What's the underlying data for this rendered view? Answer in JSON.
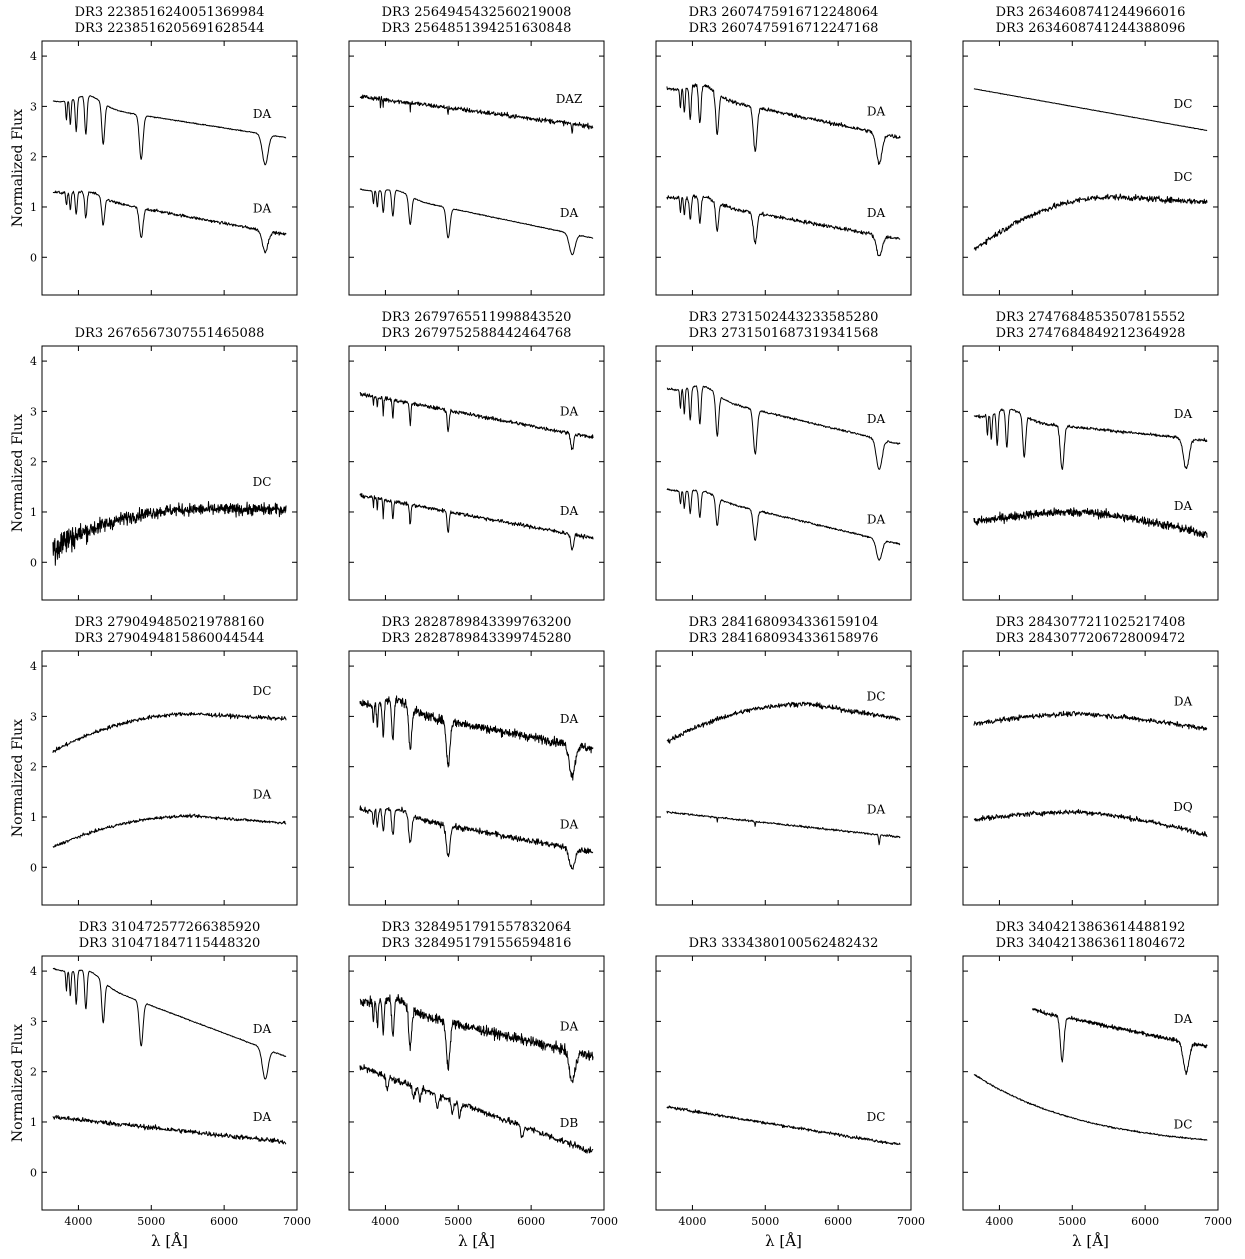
{
  "figure": {
    "ylabel": "Normalized Flux",
    "xlabel": "λ [Å]"
  },
  "chart_data": [
    {
      "type": "line",
      "title": [
        "DR3 2238516240051369984",
        "DR3 2238516205691628544"
      ],
      "xlim": [
        3500,
        7000
      ],
      "ylim": [
        -0.75,
        4.3
      ],
      "series": [
        {
          "label": "DA",
          "label_y": 2.85,
          "shape": "da",
          "start": 3.1,
          "end": 2.38,
          "noise": 0.01
        },
        {
          "label": "DA",
          "label_y": 0.97,
          "shape": "da",
          "start": 1.3,
          "end": 0.45,
          "noise": 0.03
        }
      ]
    },
    {
      "type": "line",
      "title": [
        "DR3 2564945432560219008",
        "DR3 2564851394251630848"
      ],
      "xlim": [
        3500,
        7000
      ],
      "ylim": [
        -0.75,
        4.3
      ],
      "series": [
        {
          "label": "DAZ",
          "label_y": 3.15,
          "shape": "daz",
          "start": 3.2,
          "end": 2.6,
          "noise": 0.05
        },
        {
          "label": "DA",
          "label_y": 0.88,
          "shape": "da",
          "start": 1.35,
          "end": 0.38,
          "noise": 0.01
        }
      ]
    },
    {
      "type": "line",
      "title": [
        "DR3 2607475916712248064",
        "DR3 2607475916712247168"
      ],
      "xlim": [
        3500,
        7000
      ],
      "ylim": [
        -0.75,
        4.3
      ],
      "series": [
        {
          "label": "DA",
          "label_y": 2.9,
          "shape": "da",
          "start": 3.35,
          "end": 2.38,
          "noise": 0.04
        },
        {
          "label": "DA",
          "label_y": 0.88,
          "shape": "da",
          "start": 1.2,
          "end": 0.36,
          "noise": 0.04
        }
      ]
    },
    {
      "type": "line",
      "title": [
        "DR3 2634608741244966016",
        "DR3 2634608741244388096"
      ],
      "xlim": [
        3500,
        7000
      ],
      "ylim": [
        -0.75,
        4.3
      ],
      "series": [
        {
          "label": "DC",
          "label_y": 3.05,
          "shape": "dc_lin",
          "start": 3.35,
          "end": 2.52,
          "noise": 0.005
        },
        {
          "label": "DC",
          "label_y": 1.6,
          "shape": "dc_rise",
          "start": 0.15,
          "peak": 1.2,
          "end": 1.1,
          "noise": 0.06
        }
      ]
    },
    {
      "type": "line",
      "title": [
        "DR3 2676567307551465088"
      ],
      "xlim": [
        3500,
        7000
      ],
      "ylim": [
        -0.75,
        4.3
      ],
      "series": [
        {
          "label": "DC",
          "label_y": 1.6,
          "shape": "dc_noisy",
          "start": 0.3,
          "peak": 1.05,
          "end": 1.05,
          "noise": 0.12
        }
      ]
    },
    {
      "type": "line",
      "title": [
        "DR3 2679765511998843520",
        "DR3 2679752588442464768"
      ],
      "xlim": [
        3500,
        7000
      ],
      "ylim": [
        -0.75,
        4.3
      ],
      "series": [
        {
          "label": "DA",
          "label_y": 3.0,
          "shape": "da_weak",
          "start": 3.35,
          "end": 2.48,
          "noise": 0.04
        },
        {
          "label": "DA",
          "label_y": 1.02,
          "shape": "da_weak",
          "start": 1.33,
          "end": 0.48,
          "noise": 0.04
        }
      ]
    },
    {
      "type": "line",
      "title": [
        "DR3 2731502443233585280",
        "DR3 2731501687319341568"
      ],
      "xlim": [
        3500,
        7000
      ],
      "ylim": [
        -0.75,
        4.3
      ],
      "series": [
        {
          "label": "DA",
          "label_y": 2.85,
          "shape": "da",
          "start": 3.45,
          "end": 2.35,
          "noise": 0.02
        },
        {
          "label": "DA",
          "label_y": 0.85,
          "shape": "da",
          "start": 1.45,
          "end": 0.36,
          "noise": 0.02
        }
      ]
    },
    {
      "type": "line",
      "title": [
        "DR3 2747684853507815552",
        "DR3 2747684849212364928"
      ],
      "xlim": [
        3500,
        7000
      ],
      "ylim": [
        -0.75,
        4.3
      ],
      "series": [
        {
          "label": "DA",
          "label_y": 2.95,
          "shape": "da",
          "start": 2.9,
          "end": 2.42,
          "noise": 0.03
        },
        {
          "label": "DA",
          "label_y": 1.12,
          "shape": "dc_flat",
          "start": 0.8,
          "peak": 1.0,
          "end": 0.55,
          "noise": 0.09
        }
      ]
    },
    {
      "type": "line",
      "title": [
        "DR3 2790494850219788160",
        "DR3 2790494815860044544"
      ],
      "xlim": [
        3500,
        7000
      ],
      "ylim": [
        -0.75,
        4.3
      ],
      "series": [
        {
          "label": "DC",
          "label_y": 3.5,
          "shape": "dc_rise",
          "start": 2.3,
          "peak": 3.05,
          "end": 2.95,
          "noise": 0.04
        },
        {
          "label": "DA",
          "label_y": 1.45,
          "shape": "dc_rise",
          "start": 0.4,
          "peak": 1.02,
          "end": 0.88,
          "noise": 0.03
        }
      ]
    },
    {
      "type": "line",
      "title": [
        "DR3 2828789843399763200",
        "DR3 2828789843399745280"
      ],
      "xlim": [
        3500,
        7000
      ],
      "ylim": [
        -0.75,
        4.3
      ],
      "series": [
        {
          "label": "DA",
          "label_y": 2.95,
          "shape": "da",
          "start": 3.25,
          "end": 2.35,
          "noise": 0.09
        },
        {
          "label": "DA",
          "label_y": 0.85,
          "shape": "da",
          "start": 1.15,
          "end": 0.3,
          "noise": 0.06
        }
      ]
    },
    {
      "type": "line",
      "title": [
        "DR3 2841680934336159104",
        "DR3 2841680934336158976"
      ],
      "xlim": [
        3500,
        7000
      ],
      "ylim": [
        -0.75,
        4.3
      ],
      "series": [
        {
          "label": "DC",
          "label_y": 3.4,
          "shape": "dc_rise",
          "start": 2.5,
          "peak": 3.25,
          "end": 2.95,
          "noise": 0.05
        },
        {
          "label": "DA",
          "label_y": 1.15,
          "shape": "da_faint",
          "start": 1.1,
          "end": 0.6,
          "noise": 0.02
        }
      ]
    },
    {
      "type": "line",
      "title": [
        "DR3 2843077211025217408",
        "DR3 2843077206728009472"
      ],
      "xlim": [
        3500,
        7000
      ],
      "ylim": [
        -0.75,
        4.3
      ],
      "series": [
        {
          "label": "DA",
          "label_y": 3.3,
          "shape": "dc_flat",
          "start": 2.85,
          "peak": 3.05,
          "end": 2.75,
          "noise": 0.05
        },
        {
          "label": "DQ",
          "label_y": 1.2,
          "shape": "dc_flat",
          "start": 0.95,
          "peak": 1.1,
          "end": 0.65,
          "noise": 0.05
        }
      ]
    },
    {
      "type": "line",
      "title": [
        "DR3 310472577266385920",
        "DR3 310471847115448320"
      ],
      "xlim": [
        3500,
        7000
      ],
      "ylim": [
        -0.75,
        4.3
      ],
      "series": [
        {
          "label": "DA",
          "label_y": 2.85,
          "shape": "da",
          "start": 4.05,
          "end": 2.3,
          "noise": 0.01
        },
        {
          "label": "DA",
          "label_y": 1.1,
          "shape": "dc_lin",
          "start": 1.1,
          "end": 0.6,
          "noise": 0.05
        }
      ]
    },
    {
      "type": "line",
      "title": [
        "DR3 3284951791557832064",
        "DR3 3284951791556594816"
      ],
      "xlim": [
        3500,
        7000
      ],
      "ylim": [
        -0.75,
        4.3
      ],
      "series": [
        {
          "label": "DA",
          "label_y": 2.9,
          "shape": "da",
          "start": 3.4,
          "end": 2.3,
          "noise": 0.1
        },
        {
          "label": "DB",
          "label_y": 0.98,
          "shape": "db",
          "start": 2.1,
          "end": 0.4,
          "noise": 0.07
        }
      ]
    },
    {
      "type": "line",
      "title": [
        "DR3 3334380100562482432"
      ],
      "xlim": [
        3500,
        7000
      ],
      "ylim": [
        -0.75,
        4.3
      ],
      "series": [
        {
          "label": "DC",
          "label_y": 1.1,
          "shape": "dc_lin",
          "start": 1.3,
          "end": 0.55,
          "noise": 0.03
        }
      ]
    },
    {
      "type": "line",
      "title": [
        "DR3 3404213863614488192",
        "DR3 3404213863611804672"
      ],
      "xlim": [
        3500,
        7000
      ],
      "ylim": [
        -0.75,
        4.3
      ],
      "series": [
        {
          "label": "DA",
          "label_y": 3.05,
          "shape": "da_red",
          "start": 3.45,
          "end": 2.5,
          "noise": 0.04,
          "xstart": 4450
        },
        {
          "label": "DC",
          "label_y": 0.95,
          "shape": "dc_decay",
          "start": 1.95,
          "end": 0.45,
          "noise": 0.015
        }
      ]
    }
  ]
}
